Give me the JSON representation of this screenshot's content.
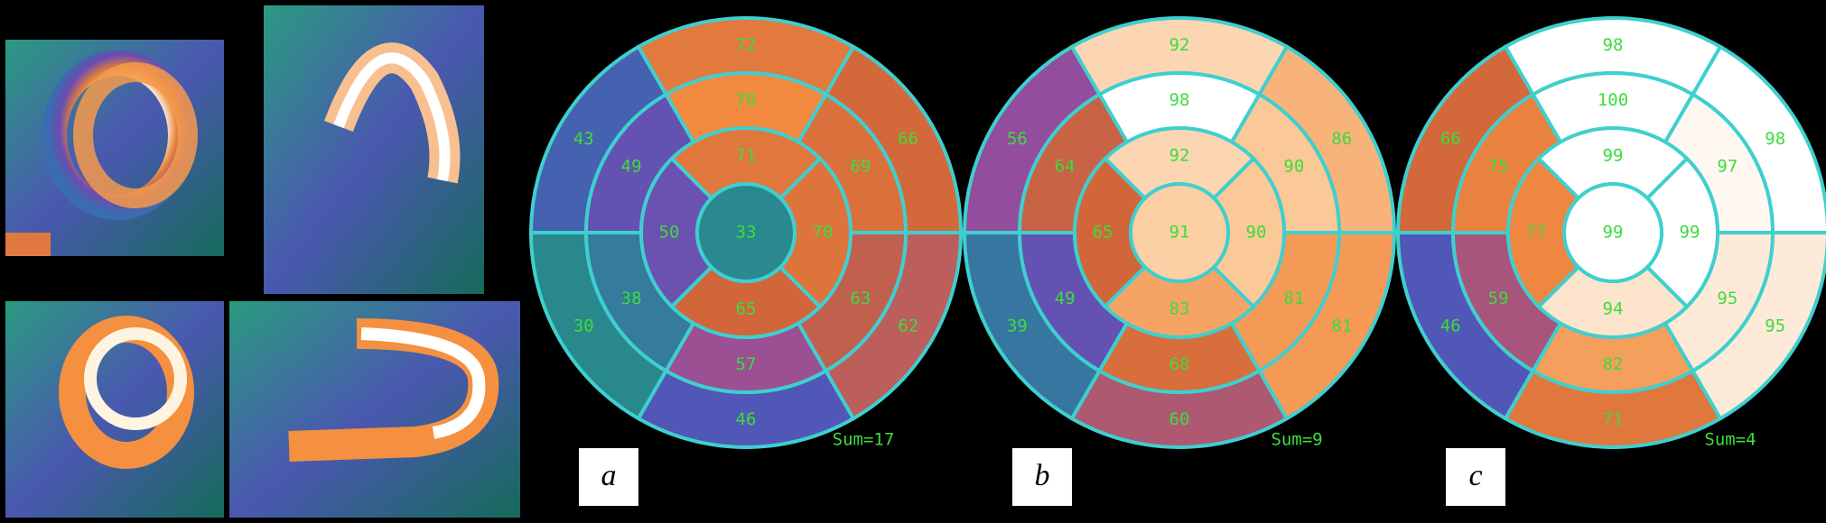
{
  "panels": [
    {
      "label": "a",
      "sum": "Sum=17",
      "basal": [
        72,
        43,
        30,
        46,
        62,
        66
      ],
      "mid": [
        78,
        49,
        38,
        57,
        63,
        69
      ],
      "apical": [
        71,
        50,
        65,
        70
      ],
      "apex": 33
    },
    {
      "label": "b",
      "sum": "Sum=9",
      "basal": [
        92,
        56,
        39,
        60,
        81,
        86
      ],
      "mid": [
        98,
        64,
        49,
        68,
        81,
        90
      ],
      "apical": [
        92,
        65,
        83,
        90
      ],
      "apex": 91
    },
    {
      "label": "c",
      "sum": "Sum=4",
      "basal": [
        98,
        66,
        46,
        71,
        95,
        98
      ],
      "mid": [
        100,
        75,
        59,
        82,
        95,
        97
      ],
      "apical": [
        99,
        77,
        94,
        99
      ],
      "apex": 99
    }
  ]
}
